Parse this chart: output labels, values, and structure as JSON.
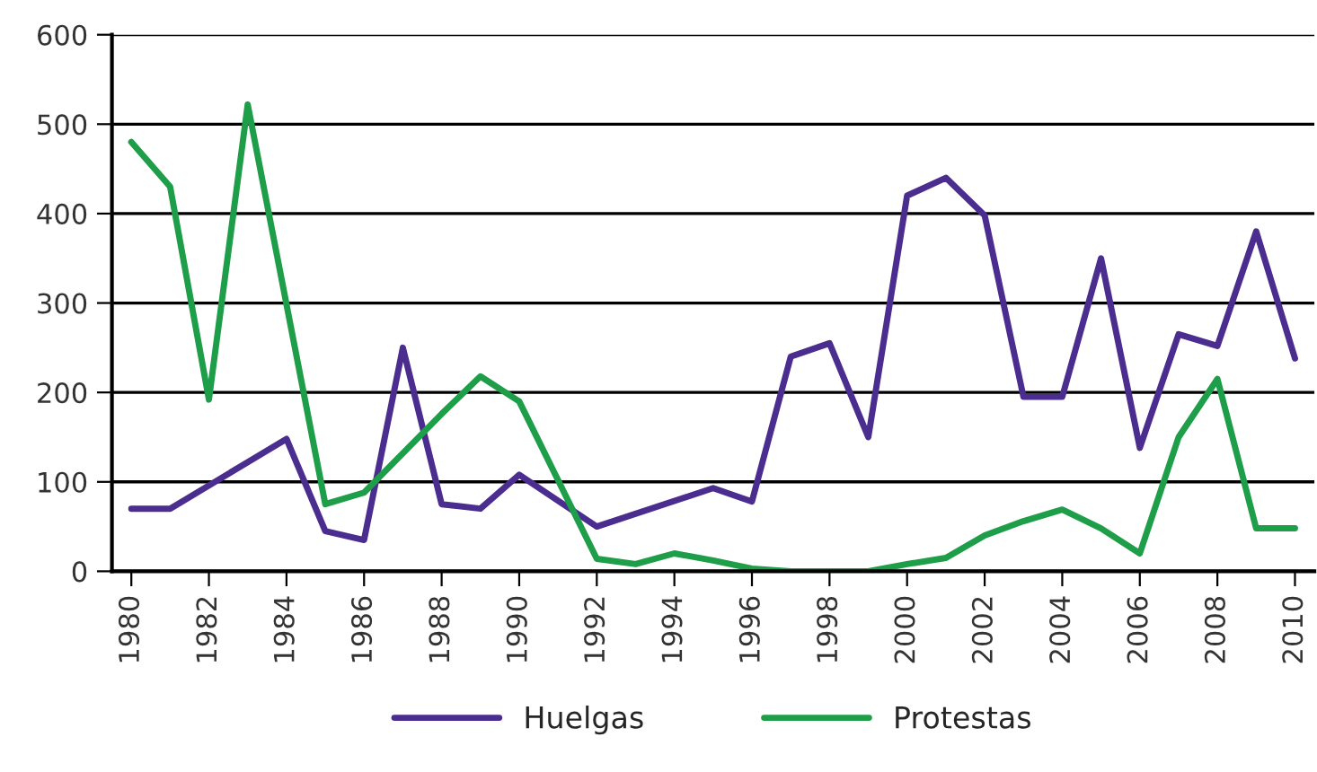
{
  "chart_data": {
    "type": "line",
    "xlim": [
      1979.5,
      2010.5
    ],
    "xticks": [
      1980,
      1982,
      1984,
      1986,
      1988,
      1990,
      1992,
      1994,
      1996,
      1998,
      2000,
      2002,
      2004,
      2006,
      2008,
      2010
    ],
    "ylim": [
      0,
      600
    ],
    "yticks": [
      0,
      100,
      200,
      300,
      400,
      500,
      600
    ],
    "grid": "y",
    "legend": "bottom",
    "marker": "none",
    "line_style": "solid",
    "series": [
      {
        "name": "Huelgas",
        "color": "#4b2d8f",
        "x": [
          1980,
          1981,
          1984,
          1985,
          1986,
          1987,
          1988,
          1989,
          1990,
          1992,
          1995,
          1996,
          1997,
          1998,
          1999,
          2000,
          2001,
          2002,
          2003,
          2004,
          2005,
          2006,
          2007,
          2008,
          2009,
          2010
        ],
        "values": [
          70,
          70,
          148,
          45,
          35,
          250,
          75,
          70,
          108,
          50,
          93,
          78,
          240,
          255,
          150,
          420,
          440,
          398,
          195,
          195,
          350,
          138,
          265,
          252,
          380,
          238
        ]
      },
      {
        "name": "Protestas",
        "color": "#1f9e4a",
        "x": [
          1980,
          1981,
          1982,
          1983,
          1985,
          1986,
          1988,
          1989,
          1990,
          1992,
          1993,
          1994,
          1995,
          1996,
          1997,
          1998,
          1999,
          2000,
          2001,
          2002,
          2003,
          2004,
          2005,
          2006,
          2007,
          2008,
          2009,
          2010
        ],
        "values": [
          480,
          430,
          192,
          522,
          75,
          88,
          176,
          218,
          190,
          14,
          8,
          20,
          12,
          3,
          0,
          0,
          0,
          8,
          15,
          40,
          56,
          69,
          48,
          20,
          150,
          215,
          48,
          48
        ]
      }
    ]
  }
}
